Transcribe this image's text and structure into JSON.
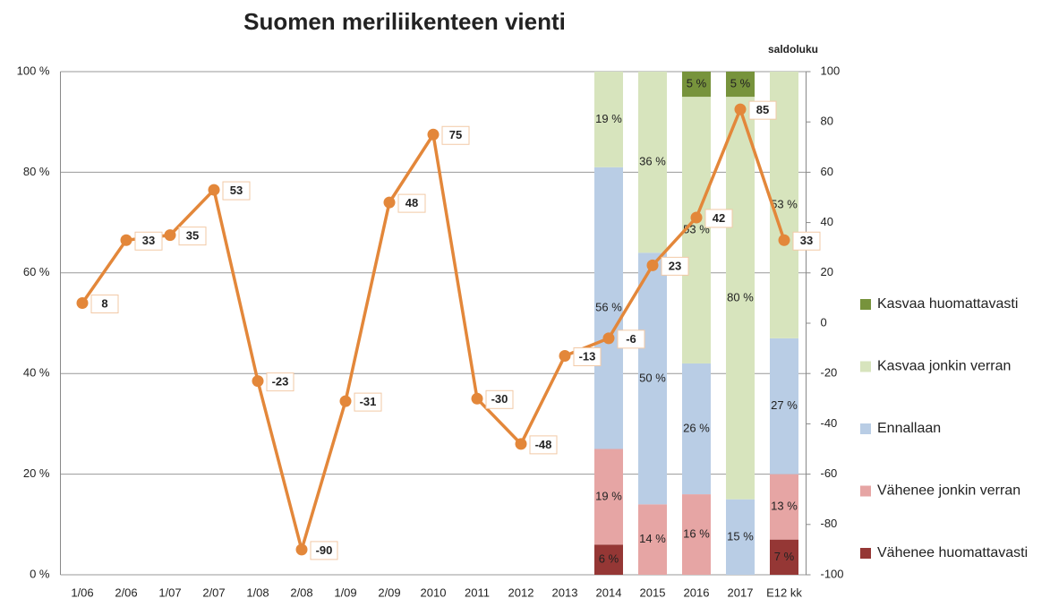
{
  "chart_data": {
    "type": "combo",
    "title": "Suomen meriliikenteen vienti",
    "y2_label": "saldoluku",
    "categories": [
      "1/06",
      "2/06",
      "1/07",
      "2/07",
      "1/08",
      "2/08",
      "1/09",
      "2/09",
      "2010",
      "2011",
      "2012",
      "2013",
      "2014",
      "2015",
      "2016",
      "2017",
      "E12 kk"
    ],
    "ylim": [
      0,
      100
    ],
    "yticks": [
      {
        "value": 0,
        "label": "0 %"
      },
      {
        "value": 20,
        "label": "20 %"
      },
      {
        "value": 40,
        "label": "40 %"
      },
      {
        "value": 60,
        "label": "60 %"
      },
      {
        "value": 80,
        "label": "80 %"
      },
      {
        "value": 100,
        "label": "100 %"
      }
    ],
    "y2lim": [
      -100,
      100
    ],
    "y2ticks": [
      -100,
      -80,
      -60,
      -40,
      -20,
      0,
      20,
      40,
      60,
      80,
      100
    ],
    "grid": true,
    "legend": "right",
    "series": [
      {
        "name": "Vähenee huomattavasti",
        "type": "bar",
        "color": "#953735",
        "values": [
          null,
          null,
          null,
          null,
          null,
          null,
          null,
          null,
          null,
          null,
          null,
          null,
          6,
          null,
          null,
          null,
          7
        ],
        "value_labels": [
          null,
          null,
          null,
          null,
          null,
          null,
          null,
          null,
          null,
          null,
          null,
          null,
          "6 %",
          null,
          null,
          null,
          "7 %"
        ]
      },
      {
        "name": "Vähenee jonkin verran",
        "type": "bar",
        "color": "#e6a5a4",
        "values": [
          null,
          null,
          null,
          null,
          null,
          null,
          null,
          null,
          null,
          null,
          null,
          null,
          19,
          14,
          16,
          null,
          13
        ],
        "value_labels": [
          null,
          null,
          null,
          null,
          null,
          null,
          null,
          null,
          null,
          null,
          null,
          null,
          "19 %",
          "14 %",
          "16 %",
          null,
          "13 %"
        ]
      },
      {
        "name": "Ennallaan",
        "type": "bar",
        "color": "#b9cde5",
        "values": [
          null,
          null,
          null,
          null,
          null,
          null,
          null,
          null,
          null,
          null,
          null,
          null,
          56,
          50,
          26,
          15,
          27
        ],
        "value_labels": [
          null,
          null,
          null,
          null,
          null,
          null,
          null,
          null,
          null,
          null,
          null,
          null,
          "56 %",
          "50 %",
          "26 %",
          "15 %",
          "27 %"
        ]
      },
      {
        "name": "Kasvaa jonkin verran",
        "type": "bar",
        "color": "#d7e4bd",
        "values": [
          null,
          null,
          null,
          null,
          null,
          null,
          null,
          null,
          null,
          null,
          null,
          null,
          19,
          36,
          53,
          80,
          53
        ],
        "value_labels": [
          null,
          null,
          null,
          null,
          null,
          null,
          null,
          null,
          null,
          null,
          null,
          null,
          "19 %",
          "36 %",
          "53 %",
          "80 %",
          "53 %"
        ]
      },
      {
        "name": "Kasvaa huomattavasti",
        "type": "bar",
        "color": "#77933c",
        "values": [
          null,
          null,
          null,
          null,
          null,
          null,
          null,
          null,
          null,
          null,
          null,
          null,
          null,
          null,
          5,
          5,
          null
        ],
        "value_labels": [
          null,
          null,
          null,
          null,
          null,
          null,
          null,
          null,
          null,
          null,
          null,
          null,
          null,
          null,
          "5 %",
          "5 %",
          null
        ]
      },
      {
        "type": "line",
        "axis": "y2",
        "color": "#e3873a",
        "values": [
          8,
          33,
          35,
          53,
          -23,
          -90,
          -31,
          48,
          75,
          -30,
          -48,
          -13,
          -6,
          23,
          42,
          85,
          33
        ]
      }
    ]
  }
}
